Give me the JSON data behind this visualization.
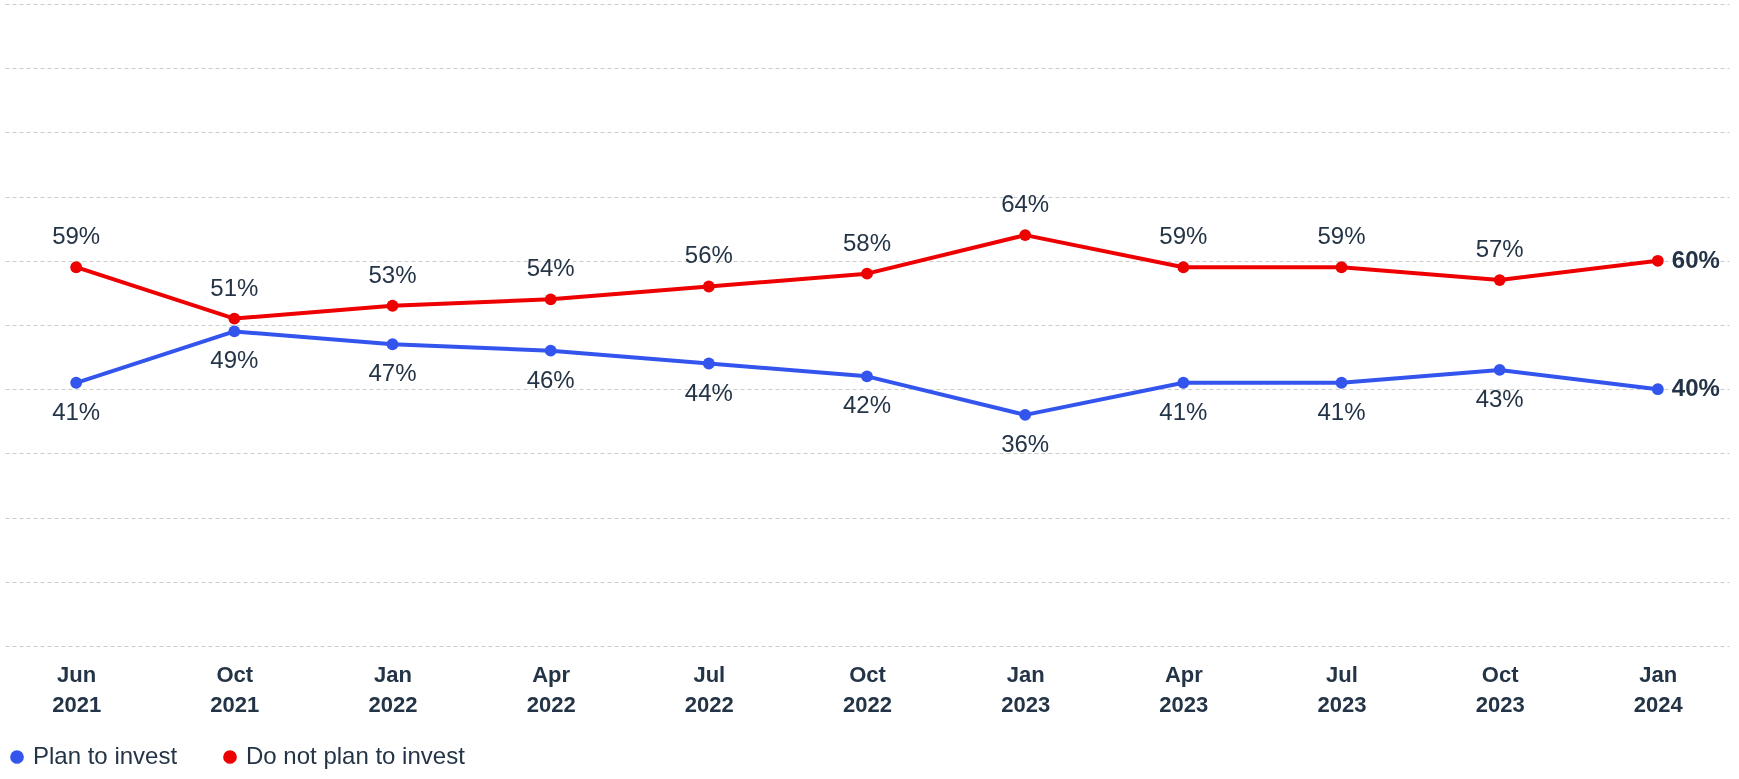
{
  "chart_data": {
    "type": "line",
    "categories": [
      "Jun 2021",
      "Oct 2021",
      "Jan 2022",
      "Apr 2022",
      "Jul 2022",
      "Oct 2022",
      "Jan 2023",
      "Apr 2023",
      "Jul 2023",
      "Oct 2023",
      "Jan 2024"
    ],
    "series": [
      {
        "name": "Plan to invest",
        "color": "#3355ee",
        "values": [
          41,
          49,
          47,
          46,
          44,
          42,
          36,
          41,
          41,
          43,
          40
        ],
        "value_labels": [
          "41%",
          "49%",
          "47%",
          "46%",
          "44%",
          "42%",
          "36%",
          "41%",
          "41%",
          "43%",
          "40%"
        ]
      },
      {
        "name": "Do not plan to invest",
        "color": "#ee0000",
        "values": [
          59,
          51,
          53,
          54,
          56,
          58,
          64,
          59,
          59,
          57,
          60
        ],
        "value_labels": [
          "59%",
          "51%",
          "53%",
          "54%",
          "56%",
          "58%",
          "64%",
          "59%",
          "59%",
          "57%",
          "60%"
        ]
      }
    ],
    "ylim": [
      0,
      100
    ],
    "yticks": [
      {
        "value": 0,
        "label": null
      },
      {
        "value": 10,
        "label": null
      },
      {
        "value": 20,
        "label": null
      },
      {
        "value": 30,
        "label": null
      },
      {
        "value": 40,
        "label": null
      },
      {
        "value": 50,
        "label": null
      },
      {
        "value": 60,
        "label": null
      },
      {
        "value": 70,
        "label": null
      },
      {
        "value": 80,
        "label": null
      },
      {
        "value": 90,
        "label": null
      },
      {
        "value": 100,
        "label": null
      }
    ],
    "grid": "y",
    "tick_labels": "x",
    "legend": "bottom",
    "marker": "circle",
    "line_style": "solid"
  }
}
